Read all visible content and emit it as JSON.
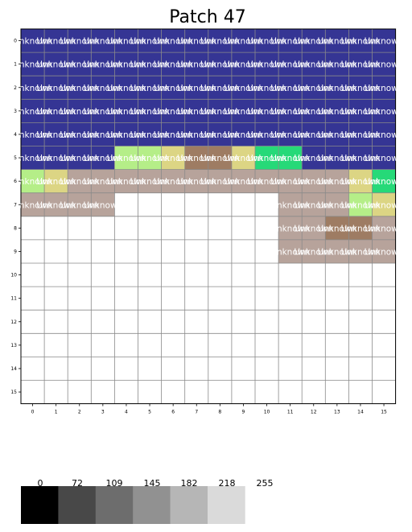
{
  "chart_data": {
    "type": "heatmap",
    "title": "Patch 47",
    "x_ticks": [
      "0",
      "1",
      "2",
      "3",
      "4",
      "5",
      "6",
      "7",
      "8",
      "9",
      "10",
      "11",
      "12",
      "13",
      "14",
      "15"
    ],
    "y_ticks": [
      "0",
      "1",
      "2",
      "3",
      "4",
      "5",
      "6",
      "7",
      "8",
      "9",
      "10",
      "11",
      "12",
      "13",
      "14",
      "15"
    ],
    "cell_label": "Unknown",
    "grid": true,
    "palette": {
      "N": "#353594",
      "L": "#b5ee88",
      "Y": "#dcd584",
      "B": "#9e7c63",
      "G": "#26d978",
      "T": "#b7a39b",
      "W": "#ffffff"
    },
    "cells": [
      "NNNNNNNNNNNNNNNN",
      "NNNNNNNNNNNNNNNN",
      "NNNNNNNNNNNNNNNN",
      "NNNNNNNNNNNNNNNN",
      "NNNNNNNNNNNNNNNN",
      "NNNNLLYBBYGGNNNN",
      "LYTTTTTTTTTTTTYG",
      "TTTTWWWWWWWTTTLY",
      "WWWWWWWWWWWTTBBT",
      "WWWWWWWWWWWTTTTT",
      "WWWWWWWWWWWWWWWW",
      "WWWWWWWWWWWWWWWW",
      "WWWWWWWWWWWWWWWW",
      "WWWWWWWWWWWWWWWW",
      "WWWWWWWWWWWWWWWW",
      "WWWWWWWWWWWWWWWW"
    ],
    "legend": {
      "labels": [
        "0",
        "72",
        "109",
        "145",
        "182",
        "218",
        "255"
      ],
      "swatches": [
        "#000000",
        "#484848",
        "#6d6d6d",
        "#919191",
        "#b6b6b6",
        "#dadada"
      ]
    }
  }
}
